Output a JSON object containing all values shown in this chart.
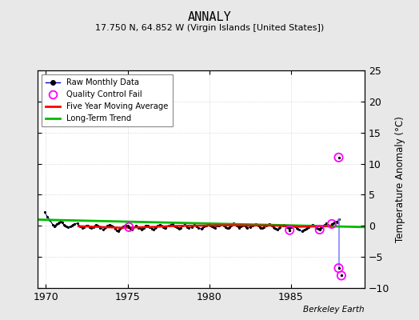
{
  "title": "ANNALY",
  "subtitle": "17.750 N, 64.852 W (Virgin Islands [United States])",
  "ylabel": "Temperature Anomaly (°C)",
  "attribution": "Berkeley Earth",
  "xlim": [
    1969.5,
    1989.5
  ],
  "ylim": [
    -10,
    25
  ],
  "yticks": [
    -10,
    -5,
    0,
    5,
    10,
    15,
    20,
    25
  ],
  "xticks": [
    1970,
    1975,
    1980,
    1985
  ],
  "background_color": "#e8e8e8",
  "plot_bg_color": "#ffffff",
  "raw_color": "#0000cc",
  "raw_dot_color": "#000000",
  "qc_color": "#ff00ff",
  "ma_color": "#ff0000",
  "trend_color": "#00bb00",
  "vline_color": "#8888ff",
  "raw_monthly": [
    [
      1969.917,
      2.2
    ],
    [
      1970.083,
      1.5
    ],
    [
      1970.25,
      0.9
    ],
    [
      1970.417,
      0.2
    ],
    [
      1970.5,
      -0.1
    ],
    [
      1970.583,
      0.1
    ],
    [
      1970.667,
      0.3
    ],
    [
      1970.75,
      0.4
    ],
    [
      1970.833,
      0.6
    ],
    [
      1970.917,
      0.7
    ],
    [
      1971.0,
      0.5
    ],
    [
      1971.083,
      0.2
    ],
    [
      1971.167,
      0.0
    ],
    [
      1971.25,
      -0.1
    ],
    [
      1971.333,
      -0.2
    ],
    [
      1971.5,
      -0.1
    ],
    [
      1971.583,
      0.0
    ],
    [
      1971.667,
      0.2
    ],
    [
      1971.75,
      0.3
    ],
    [
      1971.917,
      0.4
    ],
    [
      1972.0,
      0.1
    ],
    [
      1972.083,
      -0.1
    ],
    [
      1972.25,
      -0.3
    ],
    [
      1972.333,
      -0.2
    ],
    [
      1972.5,
      0.1
    ],
    [
      1972.583,
      0.0
    ],
    [
      1972.667,
      -0.2
    ],
    [
      1972.75,
      -0.3
    ],
    [
      1972.917,
      -0.2
    ],
    [
      1973.0,
      0.0
    ],
    [
      1973.083,
      0.2
    ],
    [
      1973.167,
      0.1
    ],
    [
      1973.25,
      -0.1
    ],
    [
      1973.333,
      -0.3
    ],
    [
      1973.5,
      -0.6
    ],
    [
      1973.583,
      -0.4
    ],
    [
      1973.667,
      -0.2
    ],
    [
      1973.75,
      0.0
    ],
    [
      1973.833,
      0.1
    ],
    [
      1973.917,
      0.2
    ],
    [
      1974.0,
      0.1
    ],
    [
      1974.083,
      -0.1
    ],
    [
      1974.25,
      -0.5
    ],
    [
      1974.333,
      -0.7
    ],
    [
      1974.417,
      -0.8
    ],
    [
      1974.5,
      -0.6
    ],
    [
      1974.583,
      -0.4
    ],
    [
      1974.667,
      -0.2
    ],
    [
      1974.75,
      -0.1
    ],
    [
      1974.833,
      0.0
    ],
    [
      1974.917,
      0.1
    ],
    [
      1975.0,
      0.0
    ],
    [
      1975.083,
      -0.2
    ],
    [
      1975.167,
      -0.5
    ],
    [
      1975.25,
      -0.6
    ],
    [
      1975.333,
      -0.4
    ],
    [
      1975.5,
      0.0
    ],
    [
      1975.583,
      -0.1
    ],
    [
      1975.667,
      -0.3
    ],
    [
      1975.75,
      -0.4
    ],
    [
      1975.833,
      -0.6
    ],
    [
      1975.917,
      -0.5
    ],
    [
      1976.0,
      -0.3
    ],
    [
      1976.083,
      0.0
    ],
    [
      1976.167,
      0.1
    ],
    [
      1976.25,
      0.0
    ],
    [
      1976.333,
      -0.2
    ],
    [
      1976.5,
      -0.5
    ],
    [
      1976.583,
      -0.6
    ],
    [
      1976.667,
      -0.4
    ],
    [
      1976.75,
      -0.2
    ],
    [
      1976.833,
      0.0
    ],
    [
      1976.917,
      0.1
    ],
    [
      1977.0,
      0.2
    ],
    [
      1977.083,
      0.0
    ],
    [
      1977.167,
      -0.2
    ],
    [
      1977.25,
      -0.3
    ],
    [
      1977.333,
      -0.4
    ],
    [
      1977.5,
      0.0
    ],
    [
      1977.583,
      0.1
    ],
    [
      1977.667,
      0.2
    ],
    [
      1977.75,
      0.3
    ],
    [
      1977.833,
      0.1
    ],
    [
      1977.917,
      -0.1
    ],
    [
      1978.0,
      -0.2
    ],
    [
      1978.083,
      -0.4
    ],
    [
      1978.167,
      -0.5
    ],
    [
      1978.25,
      -0.3
    ],
    [
      1978.333,
      0.0
    ],
    [
      1978.5,
      0.2
    ],
    [
      1978.583,
      0.0
    ],
    [
      1978.667,
      -0.2
    ],
    [
      1978.75,
      -0.3
    ],
    [
      1978.917,
      -0.2
    ],
    [
      1979.0,
      0.0
    ],
    [
      1979.083,
      0.2
    ],
    [
      1979.167,
      0.1
    ],
    [
      1979.25,
      -0.1
    ],
    [
      1979.333,
      -0.3
    ],
    [
      1979.5,
      -0.5
    ],
    [
      1979.583,
      -0.3
    ],
    [
      1979.667,
      -0.1
    ],
    [
      1979.75,
      0.0
    ],
    [
      1979.833,
      0.1
    ],
    [
      1979.917,
      0.2
    ],
    [
      1980.0,
      0.3
    ],
    [
      1980.083,
      0.1
    ],
    [
      1980.167,
      -0.1
    ],
    [
      1980.25,
      -0.2
    ],
    [
      1980.333,
      -0.3
    ],
    [
      1980.5,
      0.0
    ],
    [
      1980.583,
      0.1
    ],
    [
      1980.667,
      0.2
    ],
    [
      1980.75,
      0.3
    ],
    [
      1980.833,
      0.2
    ],
    [
      1980.917,
      0.0
    ],
    [
      1981.0,
      -0.2
    ],
    [
      1981.083,
      -0.3
    ],
    [
      1981.167,
      -0.4
    ],
    [
      1981.25,
      -0.2
    ],
    [
      1981.333,
      0.0
    ],
    [
      1981.5,
      0.4
    ],
    [
      1981.583,
      0.3
    ],
    [
      1981.667,
      0.1
    ],
    [
      1981.75,
      -0.1
    ],
    [
      1981.833,
      -0.3
    ],
    [
      1981.917,
      -0.1
    ],
    [
      1982.0,
      0.1
    ],
    [
      1982.083,
      0.2
    ],
    [
      1982.167,
      0.0
    ],
    [
      1982.25,
      -0.2
    ],
    [
      1982.333,
      -0.3
    ],
    [
      1982.5,
      -0.2
    ],
    [
      1982.583,
      0.0
    ],
    [
      1982.667,
      0.1
    ],
    [
      1982.75,
      0.2
    ],
    [
      1982.833,
      0.3
    ],
    [
      1982.917,
      0.2
    ],
    [
      1983.0,
      0.0
    ],
    [
      1983.083,
      -0.2
    ],
    [
      1983.167,
      -0.3
    ],
    [
      1983.25,
      -0.4
    ],
    [
      1983.333,
      -0.2
    ],
    [
      1983.5,
      0.1
    ],
    [
      1983.583,
      0.2
    ],
    [
      1983.667,
      0.3
    ],
    [
      1983.75,
      0.2
    ],
    [
      1983.833,
      0.0
    ],
    [
      1983.917,
      -0.2
    ],
    [
      1984.0,
      -0.3
    ],
    [
      1984.083,
      -0.5
    ],
    [
      1984.167,
      -0.6
    ],
    [
      1984.25,
      -0.4
    ],
    [
      1984.333,
      -0.2
    ],
    [
      1984.5,
      0.1
    ],
    [
      1984.583,
      0.2
    ],
    [
      1984.667,
      0.0
    ],
    [
      1984.75,
      -0.2
    ],
    [
      1984.833,
      -0.3
    ],
    [
      1984.917,
      -0.4
    ],
    [
      1985.0,
      -0.2
    ],
    [
      1985.083,
      0.0
    ],
    [
      1985.167,
      0.1
    ],
    [
      1985.25,
      -0.1
    ],
    [
      1985.333,
      -0.3
    ],
    [
      1985.417,
      -0.5
    ],
    [
      1985.5,
      -0.6
    ],
    [
      1985.667,
      -0.9
    ],
    [
      1985.75,
      -0.7
    ],
    [
      1985.833,
      -0.6
    ],
    [
      1985.917,
      -0.5
    ],
    [
      1986.0,
      -0.3
    ],
    [
      1986.083,
      -0.2
    ],
    [
      1986.167,
      0.0
    ],
    [
      1986.25,
      0.1
    ],
    [
      1986.333,
      0.2
    ],
    [
      1986.417,
      0.1
    ],
    [
      1986.5,
      -0.1
    ],
    [
      1986.583,
      -0.3
    ],
    [
      1986.667,
      -0.5
    ],
    [
      1986.833,
      -0.4
    ],
    [
      1986.917,
      -0.2
    ],
    [
      1987.0,
      0.0
    ],
    [
      1987.083,
      0.2
    ],
    [
      1987.167,
      0.4
    ],
    [
      1987.25,
      0.2
    ],
    [
      1987.333,
      0.0
    ],
    [
      1987.417,
      -0.1
    ],
    [
      1987.583,
      0.4
    ],
    [
      1987.667,
      0.5
    ],
    [
      1987.75,
      0.7
    ],
    [
      1987.833,
      0.5
    ],
    [
      1987.917,
      1.1
    ]
  ],
  "qc_fail_points": [
    [
      1975.083,
      -0.2
    ],
    [
      1984.917,
      -0.7
    ],
    [
      1986.75,
      -0.6
    ],
    [
      1987.5,
      0.3
    ],
    [
      1987.917,
      11.0
    ],
    [
      1987.917,
      -6.8
    ],
    [
      1988.083,
      -8.0
    ]
  ],
  "vertical_line_x": 1987.917,
  "vertical_line_y": [
    1.1,
    -6.8
  ],
  "moving_avg": [
    [
      1972.0,
      -0.05
    ],
    [
      1972.5,
      -0.1
    ],
    [
      1973.0,
      -0.15
    ],
    [
      1973.5,
      -0.2
    ],
    [
      1974.0,
      -0.25
    ],
    [
      1974.5,
      -0.3
    ],
    [
      1975.0,
      -0.28
    ],
    [
      1975.5,
      -0.25
    ],
    [
      1976.0,
      -0.2
    ],
    [
      1976.5,
      -0.18
    ],
    [
      1977.0,
      -0.12
    ],
    [
      1977.5,
      -0.05
    ],
    [
      1978.0,
      -0.02
    ],
    [
      1978.5,
      0.0
    ],
    [
      1979.0,
      0.0
    ],
    [
      1979.5,
      0.02
    ],
    [
      1980.0,
      0.05
    ],
    [
      1980.5,
      0.08
    ],
    [
      1981.0,
      0.08
    ],
    [
      1981.5,
      0.1
    ],
    [
      1982.0,
      0.08
    ],
    [
      1982.5,
      0.06
    ],
    [
      1983.0,
      0.05
    ],
    [
      1983.5,
      0.05
    ],
    [
      1984.0,
      0.02
    ],
    [
      1984.5,
      0.0
    ],
    [
      1985.0,
      -0.05
    ],
    [
      1985.5,
      -0.15
    ],
    [
      1986.0,
      -0.12
    ],
    [
      1986.5,
      -0.1
    ],
    [
      1987.0,
      -0.05
    ],
    [
      1987.5,
      0.05
    ]
  ],
  "trend_x": [
    1969.5,
    1989.5
  ],
  "trend_y": [
    1.0,
    -0.2
  ]
}
